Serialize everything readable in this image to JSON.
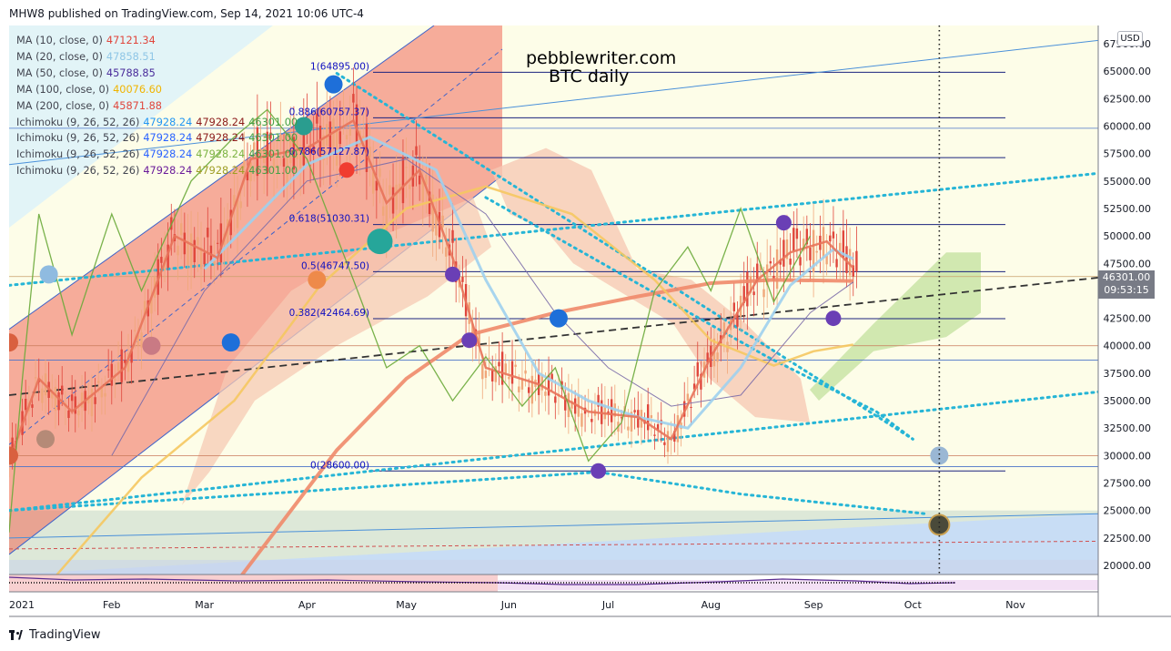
{
  "header": {
    "published": "MHW8 published on TradingView.com, Sep 14, 2021 10:06 UTC-4"
  },
  "footer": {
    "brand": "TradingView"
  },
  "currency": "USD",
  "last_price": {
    "value": "46301.00",
    "countdown": "09:53:15"
  },
  "watermark": {
    "line1": "pebblewriter.com",
    "line2": "BTC daily"
  },
  "legend": [
    {
      "name": "MA (10, close, 0)",
      "values": [
        "47121.34"
      ],
      "colors": [
        "#e0463c"
      ]
    },
    {
      "name": "MA (20, close, 0)",
      "values": [
        "47858.51"
      ],
      "colors": [
        "#8fc6e6"
      ]
    },
    {
      "name": "MA (50, close, 0)",
      "values": [
        "45788.85"
      ],
      "colors": [
        "#4a2d9b"
      ]
    },
    {
      "name": "MA (100, close, 0)",
      "values": [
        "40076.60"
      ],
      "colors": [
        "#f0b400"
      ]
    },
    {
      "name": "MA (200, close, 0)",
      "values": [
        "45871.88"
      ],
      "colors": [
        "#e0463c"
      ]
    },
    {
      "name": "Ichimoku (9, 26, 52, 26)",
      "values": [
        "47928.24",
        "47928.24",
        "46301.00"
      ],
      "colors": [
        "#2196f3",
        "#8b1a1a",
        "#43a047"
      ]
    },
    {
      "name": "Ichimoku (9, 26, 52, 26)",
      "values": [
        "47928.24",
        "47928.24",
        "46301.00"
      ],
      "colors": [
        "#2962ff",
        "#8b1a1a",
        "#43a047"
      ]
    },
    {
      "name": "Ichimoku (9, 26, 52, 26)",
      "values": [
        "47928.24",
        "47928.24",
        "46301.00"
      ],
      "colors": [
        "#2962ff",
        "#7cb342",
        "#43a047"
      ]
    },
    {
      "name": "Ichimoku (9, 26, 52, 26)",
      "values": [
        "47928.24",
        "47928.24",
        "46301.00"
      ],
      "colors": [
        "#6a1b9a",
        "#9e9d24",
        "#43a047"
      ]
    }
  ],
  "chart_data": {
    "type": "line",
    "title": "BTC daily",
    "ylim": [
      19000,
      68500
    ],
    "y_ticks": [
      "20000.00",
      "22500.00",
      "25000.00",
      "27500.00",
      "30000.00",
      "32500.00",
      "35000.00",
      "37500.00",
      "40000.00",
      "42500.00",
      "45000.00",
      "47500.00",
      "50000.00",
      "52500.00",
      "55000.00",
      "57500.00",
      "60000.00",
      "62500.00",
      "65000.00",
      "67500.00"
    ],
    "x_ticks": [
      "2021",
      "Feb",
      "Mar",
      "Apr",
      "May",
      "Jun",
      "Jul",
      "Aug",
      "Sep",
      "Oct",
      "Nov"
    ],
    "x_range": [
      "2021-01-01",
      "2021-11-26"
    ],
    "grid": false,
    "series": [
      {
        "name": "MA (200, close, 0)",
        "color": "#ef8a6a",
        "points": [
          [
            "2021-03-12",
            19000
          ],
          [
            "2021-04-10",
            30500
          ],
          [
            "2021-05-01",
            37000
          ],
          [
            "2021-05-20",
            41000
          ],
          [
            "2021-06-15",
            43000
          ],
          [
            "2021-07-10",
            44500
          ],
          [
            "2021-08-01",
            45700
          ],
          [
            "2021-08-20",
            46000
          ],
          [
            "2021-09-13",
            45900
          ]
        ]
      },
      {
        "name": "MA (100, close, 0)",
        "color": "#f5c860",
        "points": [
          [
            "2021-01-15",
            19000
          ],
          [
            "2021-02-10",
            28000
          ],
          [
            "2021-03-10",
            35000
          ],
          [
            "2021-04-05",
            45500
          ],
          [
            "2021-05-01",
            52500
          ],
          [
            "2021-05-25",
            54500
          ],
          [
            "2021-06-20",
            52000
          ],
          [
            "2021-07-15",
            46000
          ],
          [
            "2021-08-01",
            40500
          ],
          [
            "2021-08-20",
            38200
          ],
          [
            "2021-09-01",
            39500
          ],
          [
            "2021-09-13",
            40100
          ]
        ]
      },
      {
        "name": "MA (50, close, 0)",
        "color": "#7a6aa8",
        "points": [
          [
            "2021-02-01",
            30000
          ],
          [
            "2021-03-01",
            45000
          ],
          [
            "2021-04-01",
            55000
          ],
          [
            "2021-05-01",
            57000
          ],
          [
            "2021-05-25",
            52000
          ],
          [
            "2021-06-15",
            43000
          ],
          [
            "2021-07-01",
            38000
          ],
          [
            "2021-07-20",
            34500
          ],
          [
            "2021-08-10",
            35500
          ],
          [
            "2021-08-31",
            43000
          ],
          [
            "2021-09-13",
            45800
          ]
        ]
      },
      {
        "name": "MA (20, close, 0)",
        "color": "#9fd0ee",
        "points": [
          [
            "2021-03-01",
            47000
          ],
          [
            "2021-04-01",
            56500
          ],
          [
            "2021-04-20",
            59000
          ],
          [
            "2021-05-10",
            56000
          ],
          [
            "2021-05-25",
            46000
          ],
          [
            "2021-06-10",
            37500
          ],
          [
            "2021-06-25",
            35000
          ],
          [
            "2021-07-10",
            33500
          ],
          [
            "2021-07-25",
            32500
          ],
          [
            "2021-08-10",
            38000
          ],
          [
            "2021-08-25",
            45500
          ],
          [
            "2021-09-07",
            48800
          ],
          [
            "2021-09-13",
            47900
          ]
        ]
      },
      {
        "name": "MA (10, close, 0)",
        "color": "#e8735a",
        "points": [
          [
            "2021-01-01",
            29500
          ],
          [
            "2021-01-10",
            37000
          ],
          [
            "2021-01-20",
            34000
          ],
          [
            "2021-02-05",
            38000
          ],
          [
            "2021-02-20",
            50000
          ],
          [
            "2021-03-05",
            48000
          ],
          [
            "2021-03-15",
            57000
          ],
          [
            "2021-04-01",
            58000
          ],
          [
            "2021-04-15",
            60500
          ],
          [
            "2021-04-25",
            53000
          ],
          [
            "2021-05-05",
            56000
          ],
          [
            "2021-05-15",
            48000
          ],
          [
            "2021-05-25",
            38000
          ],
          [
            "2021-06-10",
            36500
          ],
          [
            "2021-06-25",
            34000
          ],
          [
            "2021-07-10",
            33500
          ],
          [
            "2021-07-20",
            31500
          ],
          [
            "2021-08-01",
            39000
          ],
          [
            "2021-08-15",
            46000
          ],
          [
            "2021-08-25",
            48500
          ],
          [
            "2021-09-05",
            49500
          ],
          [
            "2021-09-13",
            47100
          ]
        ]
      },
      {
        "name": "Ichimoku lagging",
        "color": "#6aaa3a",
        "points": [
          [
            "2021-01-01",
            23000
          ],
          [
            "2021-01-05",
            37000
          ],
          [
            "2021-01-10",
            52000
          ],
          [
            "2021-01-20",
            41000
          ],
          [
            "2021-02-01",
            52000
          ],
          [
            "2021-02-10",
            45000
          ],
          [
            "2021-02-25",
            55000
          ],
          [
            "2021-03-10",
            59000
          ],
          [
            "2021-03-20",
            61500
          ],
          [
            "2021-04-01",
            57000
          ],
          [
            "2021-04-15",
            46000
          ],
          [
            "2021-04-25",
            38000
          ],
          [
            "2021-05-05",
            40000
          ],
          [
            "2021-05-15",
            35000
          ],
          [
            "2021-05-25",
            39000
          ],
          [
            "2021-06-05",
            34500
          ],
          [
            "2021-06-15",
            38000
          ],
          [
            "2021-06-25",
            29500
          ],
          [
            "2021-07-05",
            33000
          ],
          [
            "2021-07-15",
            45000
          ],
          [
            "2021-07-25",
            49000
          ],
          [
            "2021-08-01",
            45000
          ],
          [
            "2021-08-10",
            52500
          ],
          [
            "2021-08-20",
            44000
          ],
          [
            "2021-08-31",
            50000
          ]
        ]
      }
    ],
    "horizontal_lines": [
      {
        "label": "1(64895.00)",
        "value": 64895,
        "color": "#1a237e"
      },
      {
        "label": "0.886(60757.37)",
        "value": 60757.37,
        "color": "#1a237e"
      },
      {
        "label": "0.786(57127.87)",
        "value": 57127.87,
        "color": "#1a237e"
      },
      {
        "label": "0.618(51030.31)",
        "value": 51030.31,
        "color": "#1a237e"
      },
      {
        "label": "0.5(46747.50)",
        "value": 46747.5,
        "color": "#1a237e"
      },
      {
        "label": "0.382(42464.69)",
        "value": 42464.69,
        "color": "#1a237e"
      },
      {
        "label": "0(28600.00)",
        "value": 28600,
        "color": "#1a237e"
      }
    ],
    "markers": [
      {
        "date": "2021-01-01",
        "value": 40300,
        "color": "#d9603f"
      },
      {
        "date": "2021-01-01",
        "value": 30000,
        "color": "#d9603f"
      },
      {
        "date": "2021-01-13",
        "value": 46500,
        "color": "#8fbbe0"
      },
      {
        "date": "2021-01-12",
        "value": 31500,
        "color": "#b58a77"
      },
      {
        "date": "2021-02-13",
        "value": 40000,
        "color": "#c97a84"
      },
      {
        "date": "2021-03-09",
        "value": 40300,
        "color": "#1e6fd9"
      },
      {
        "date": "2021-03-31",
        "value": 60000,
        "color": "#2a9d8f"
      },
      {
        "date": "2021-04-09",
        "value": 63800,
        "color": "#1e6fd9"
      },
      {
        "date": "2021-04-13",
        "value": 56000,
        "color": "#f03c30"
      },
      {
        "date": "2021-04-04",
        "value": 46000,
        "color": "#ee8a4a"
      },
      {
        "date": "2021-04-23",
        "value": 49500,
        "color": "#26a69a"
      },
      {
        "date": "2021-05-15",
        "value": 46500,
        "color": "#6a3fb5"
      },
      {
        "date": "2021-05-20",
        "value": 40500,
        "color": "#6a3fb5"
      },
      {
        "date": "2021-06-16",
        "value": 42500,
        "color": "#1e6fd9"
      },
      {
        "date": "2021-06-28",
        "value": 28600,
        "color": "#6a3fb5"
      },
      {
        "date": "2021-08-23",
        "value": 51200,
        "color": "#6a3fb5"
      },
      {
        "date": "2021-09-07",
        "value": 42500,
        "color": "#6a3fb5"
      },
      {
        "date": "2021-10-09",
        "value": 30000,
        "color": "#9ab7d4"
      },
      {
        "date": "2021-10-09",
        "value": 23700,
        "color": "#4a4a3a"
      }
    ],
    "trend_lines": [
      {
        "style": "dashed",
        "color": "#333333",
        "from": [
          "2021-01-01",
          35500
        ],
        "to": [
          "2021-11-26",
          46200
        ]
      },
      {
        "style": "dotted",
        "color": "#26b5d6",
        "from": [
          "2021-01-01",
          45500
        ],
        "to": [
          "2021-11-26",
          55700
        ]
      },
      {
        "style": "dotted",
        "color": "#26b5d6",
        "from": [
          "2021-01-01",
          25000
        ],
        "to": [
          "2021-11-26",
          35800
        ]
      },
      {
        "style": "dotted",
        "color": "#26b5d6",
        "from": [
          "2021-04-10",
          64800
        ],
        "to": [
          "2021-10-01",
          31500
        ]
      },
      {
        "style": "solid",
        "color": "#4a90d9",
        "from": [
          "2021-01-01",
          56500
        ],
        "to": [
          "2021-11-26",
          67800
        ]
      }
    ]
  }
}
